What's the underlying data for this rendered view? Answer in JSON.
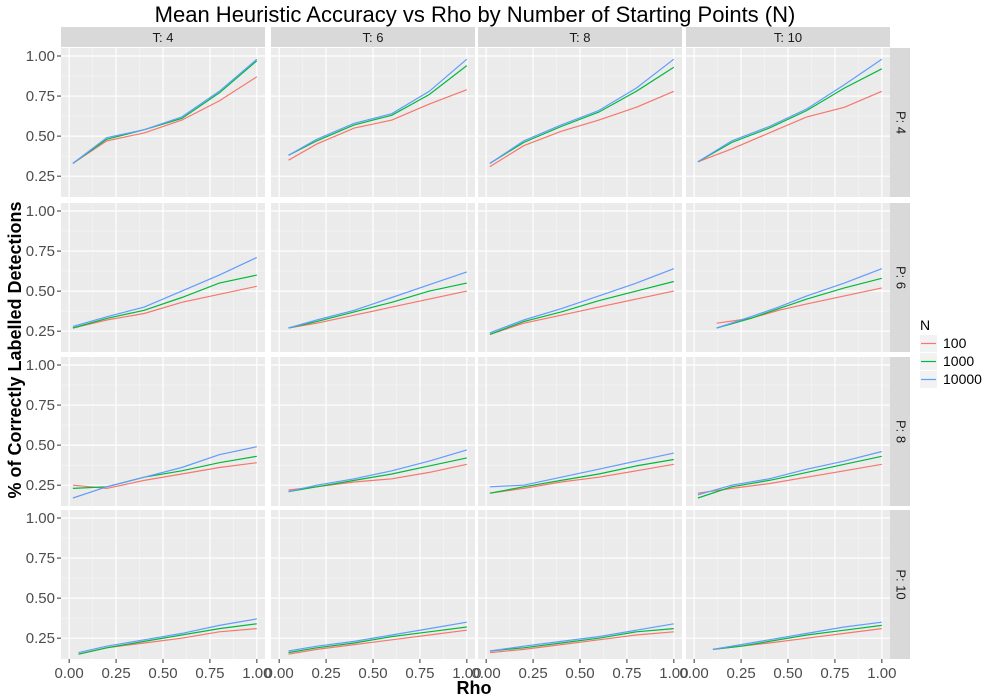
{
  "chart_data": {
    "type": "line",
    "title": "Mean Heuristic Accuracy vs Rho by Number of Starting Points (N)",
    "xlabel": "Rho",
    "ylabel": "% of Correctly Labelled Detections",
    "xlim": [
      0,
      1
    ],
    "ylim": [
      0.12,
      1.05
    ],
    "x_ticks": [
      "0.00",
      "0.25",
      "0.50",
      "0.75",
      "1.00"
    ],
    "y_ticks": [
      "0.25",
      "0.50",
      "0.75",
      "1.00"
    ],
    "facet_cols": [
      "T: 4",
      "T: 6",
      "T: 8",
      "T: 10"
    ],
    "facet_rows": [
      "P: 4",
      "P: 6",
      "P: 8",
      "P: 10"
    ],
    "grid": true,
    "legend": {
      "title": "N",
      "position": "right"
    },
    "series_meta": [
      {
        "name": "100",
        "color": "#F8766D"
      },
      {
        "name": "1000",
        "color": "#00BA38"
      },
      {
        "name": "10000",
        "color": "#619CFF"
      }
    ],
    "panels": [
      {
        "row": "P: 4",
        "col": "T: 4",
        "x": [
          0.02,
          0.2,
          0.4,
          0.6,
          0.8,
          1.0
        ],
        "series": [
          [
            0.33,
            0.47,
            0.52,
            0.6,
            0.72,
            0.87
          ],
          [
            0.33,
            0.48,
            0.54,
            0.61,
            0.77,
            0.97
          ],
          [
            0.33,
            0.49,
            0.54,
            0.62,
            0.78,
            0.98
          ]
        ]
      },
      {
        "row": "P: 4",
        "col": "T: 6",
        "x": [
          0.05,
          0.2,
          0.4,
          0.6,
          0.8,
          1.0
        ],
        "series": [
          [
            0.35,
            0.45,
            0.55,
            0.6,
            0.7,
            0.79
          ],
          [
            0.38,
            0.47,
            0.57,
            0.63,
            0.76,
            0.94
          ],
          [
            0.38,
            0.48,
            0.58,
            0.64,
            0.78,
            0.98
          ]
        ]
      },
      {
        "row": "P: 4",
        "col": "T: 8",
        "x": [
          0.02,
          0.2,
          0.4,
          0.6,
          0.8,
          1.0
        ],
        "series": [
          [
            0.31,
            0.44,
            0.53,
            0.6,
            0.68,
            0.78
          ],
          [
            0.33,
            0.46,
            0.56,
            0.65,
            0.78,
            0.93
          ],
          [
            0.33,
            0.47,
            0.57,
            0.66,
            0.8,
            0.98
          ]
        ]
      },
      {
        "row": "P: 4",
        "col": "T: 10",
        "x": [
          0.02,
          0.2,
          0.4,
          0.6,
          0.8,
          1.0
        ],
        "series": [
          [
            0.34,
            0.42,
            0.52,
            0.62,
            0.68,
            0.78
          ],
          [
            0.34,
            0.46,
            0.55,
            0.66,
            0.8,
            0.92
          ],
          [
            0.34,
            0.47,
            0.56,
            0.67,
            0.82,
            0.98
          ]
        ]
      },
      {
        "row": "P: 6",
        "col": "T: 4",
        "x": [
          0.02,
          0.2,
          0.4,
          0.6,
          0.8,
          1.0
        ],
        "series": [
          [
            0.27,
            0.32,
            0.36,
            0.43,
            0.48,
            0.53
          ],
          [
            0.27,
            0.33,
            0.38,
            0.46,
            0.55,
            0.6
          ],
          [
            0.28,
            0.34,
            0.4,
            0.5,
            0.6,
            0.71
          ]
        ]
      },
      {
        "row": "P: 6",
        "col": "T: 6",
        "x": [
          0.05,
          0.2,
          0.4,
          0.6,
          0.8,
          1.0
        ],
        "series": [
          [
            0.27,
            0.3,
            0.35,
            0.4,
            0.45,
            0.5
          ],
          [
            0.27,
            0.31,
            0.37,
            0.43,
            0.5,
            0.55
          ],
          [
            0.27,
            0.32,
            0.38,
            0.46,
            0.54,
            0.62
          ]
        ]
      },
      {
        "row": "P: 6",
        "col": "T: 8",
        "x": [
          0.02,
          0.2,
          0.4,
          0.6,
          0.8,
          1.0
        ],
        "series": [
          [
            0.23,
            0.3,
            0.35,
            0.4,
            0.45,
            0.5
          ],
          [
            0.23,
            0.31,
            0.37,
            0.44,
            0.5,
            0.56
          ],
          [
            0.24,
            0.32,
            0.39,
            0.47,
            0.55,
            0.64
          ]
        ]
      },
      {
        "row": "P: 6",
        "col": "T: 10",
        "x": [
          0.12,
          0.3,
          0.45,
          0.6,
          0.8,
          1.0
        ],
        "series": [
          [
            0.3,
            0.33,
            0.38,
            0.42,
            0.47,
            0.52
          ],
          [
            0.27,
            0.33,
            0.39,
            0.45,
            0.52,
            0.58
          ],
          [
            0.27,
            0.34,
            0.4,
            0.47,
            0.55,
            0.64
          ]
        ]
      },
      {
        "row": "P: 8",
        "col": "T: 4",
        "x": [
          0.02,
          0.2,
          0.4,
          0.6,
          0.8,
          1.0
        ],
        "series": [
          [
            0.25,
            0.23,
            0.28,
            0.32,
            0.36,
            0.39
          ],
          [
            0.23,
            0.24,
            0.3,
            0.34,
            0.39,
            0.43
          ],
          [
            0.17,
            0.24,
            0.3,
            0.36,
            0.44,
            0.49
          ]
        ]
      },
      {
        "row": "P: 8",
        "col": "T: 6",
        "x": [
          0.05,
          0.2,
          0.4,
          0.6,
          0.8,
          1.0
        ],
        "series": [
          [
            0.22,
            0.24,
            0.27,
            0.29,
            0.33,
            0.38
          ],
          [
            0.21,
            0.24,
            0.28,
            0.32,
            0.37,
            0.42
          ],
          [
            0.21,
            0.25,
            0.29,
            0.34,
            0.4,
            0.47
          ]
        ]
      },
      {
        "row": "P: 8",
        "col": "T: 8",
        "x": [
          0.02,
          0.2,
          0.4,
          0.6,
          0.8,
          1.0
        ],
        "series": [
          [
            0.2,
            0.23,
            0.27,
            0.3,
            0.34,
            0.38
          ],
          [
            0.2,
            0.24,
            0.28,
            0.32,
            0.37,
            0.41
          ],
          [
            0.24,
            0.25,
            0.3,
            0.35,
            0.4,
            0.45
          ]
        ]
      },
      {
        "row": "P: 8",
        "col": "T: 10",
        "x": [
          0.02,
          0.2,
          0.4,
          0.6,
          0.8,
          1.0
        ],
        "series": [
          [
            0.2,
            0.23,
            0.26,
            0.3,
            0.34,
            0.38
          ],
          [
            0.17,
            0.24,
            0.28,
            0.33,
            0.38,
            0.43
          ],
          [
            0.19,
            0.25,
            0.29,
            0.35,
            0.4,
            0.46
          ]
        ]
      },
      {
        "row": "P: 10",
        "col": "T: 4",
        "x": [
          0.05,
          0.2,
          0.4,
          0.6,
          0.8,
          1.0
        ],
        "series": [
          [
            0.15,
            0.19,
            0.22,
            0.25,
            0.29,
            0.31
          ],
          [
            0.15,
            0.19,
            0.23,
            0.27,
            0.31,
            0.34
          ],
          [
            0.16,
            0.2,
            0.24,
            0.28,
            0.33,
            0.37
          ]
        ]
      },
      {
        "row": "P: 10",
        "col": "T: 6",
        "x": [
          0.05,
          0.2,
          0.4,
          0.6,
          0.8,
          1.0
        ],
        "series": [
          [
            0.15,
            0.18,
            0.21,
            0.24,
            0.27,
            0.3
          ],
          [
            0.16,
            0.19,
            0.22,
            0.26,
            0.29,
            0.32
          ],
          [
            0.17,
            0.2,
            0.23,
            0.27,
            0.31,
            0.35
          ]
        ]
      },
      {
        "row": "P: 10",
        "col": "T: 8",
        "x": [
          0.02,
          0.2,
          0.4,
          0.6,
          0.8,
          1.0
        ],
        "series": [
          [
            0.16,
            0.18,
            0.21,
            0.24,
            0.27,
            0.29
          ],
          [
            0.17,
            0.19,
            0.22,
            0.25,
            0.29,
            0.31
          ],
          [
            0.17,
            0.2,
            0.23,
            0.26,
            0.3,
            0.34
          ]
        ]
      },
      {
        "row": "P: 10",
        "col": "T: 10",
        "x": [
          0.1,
          0.25,
          0.4,
          0.6,
          0.8,
          1.0
        ],
        "series": [
          [
            0.18,
            0.2,
            0.22,
            0.25,
            0.28,
            0.31
          ],
          [
            0.18,
            0.2,
            0.23,
            0.27,
            0.3,
            0.33
          ],
          [
            0.18,
            0.21,
            0.24,
            0.28,
            0.32,
            0.35
          ]
        ]
      }
    ]
  }
}
